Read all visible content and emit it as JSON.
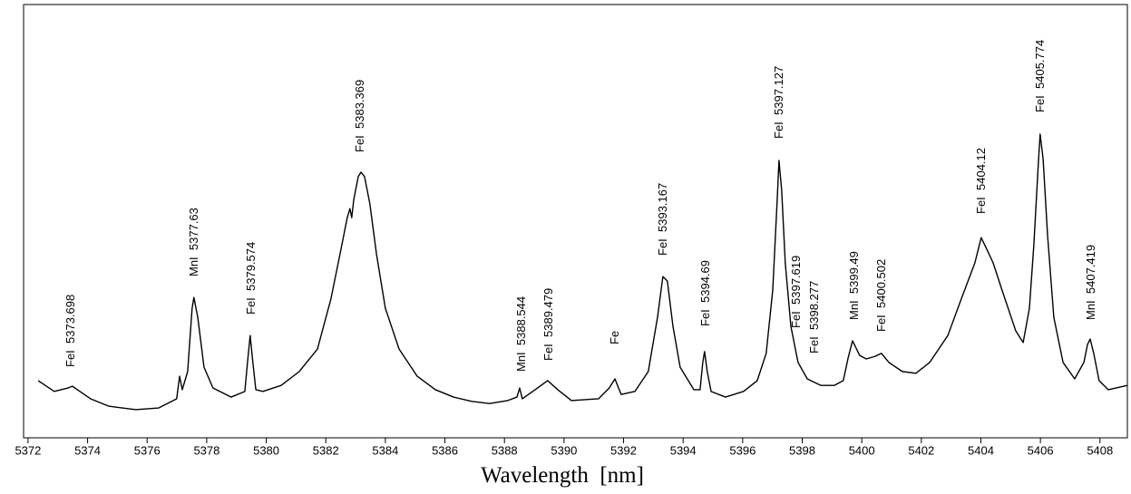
{
  "chart_data": {
    "type": "line",
    "x_label": "Wavelength  [nm]",
    "color": "#000000",
    "xlim": [
      5371.85,
      5408.92
    ],
    "ylim": [
      0,
      100
    ],
    "xticks": [
      5372,
      5374,
      5376,
      5378,
      5380,
      5382,
      5384,
      5386,
      5388,
      5390,
      5392,
      5394,
      5396,
      5398,
      5400,
      5402,
      5404,
      5406,
      5408
    ],
    "x": [
      5372.34,
      5372.88,
      5373.34,
      5373.49,
      5373.74,
      5374.1,
      5374.71,
      5375.62,
      5376.39,
      5376.99,
      5377.09,
      5377.18,
      5377.36,
      5377.51,
      5377.57,
      5377.7,
      5377.91,
      5378.21,
      5378.82,
      5379.28,
      5379.37,
      5379.46,
      5379.55,
      5379.65,
      5379.89,
      5380.5,
      5381.11,
      5381.72,
      5382.17,
      5382.48,
      5382.72,
      5382.81,
      5382.87,
      5382.94,
      5383.09,
      5383.18,
      5383.3,
      5383.48,
      5383.7,
      5384.0,
      5384.46,
      5385.07,
      5385.68,
      5386.29,
      5386.9,
      5387.5,
      5388.11,
      5388.42,
      5388.51,
      5388.6,
      5389.03,
      5389.45,
      5389.79,
      5390.25,
      5391.16,
      5391.52,
      5391.71,
      5391.92,
      5392.38,
      5392.83,
      5393.14,
      5393.32,
      5393.47,
      5393.66,
      5393.9,
      5394.36,
      5394.57,
      5394.66,
      5394.72,
      5394.81,
      5394.94,
      5395.42,
      5396.03,
      5396.49,
      5396.79,
      5397.01,
      5397.16,
      5397.22,
      5397.31,
      5397.43,
      5397.62,
      5397.86,
      5398.17,
      5398.62,
      5399.08,
      5399.38,
      5399.54,
      5399.69,
      5399.93,
      5400.15,
      5400.45,
      5400.66,
      5400.91,
      5401.36,
      5401.82,
      5402.28,
      5402.89,
      5403.34,
      5403.8,
      5404.01,
      5404.2,
      5404.41,
      5404.71,
      5405.17,
      5405.42,
      5405.63,
      5405.78,
      5405.93,
      5405.99,
      5406.09,
      5406.24,
      5406.45,
      5406.76,
      5407.15,
      5407.46,
      5407.58,
      5407.67,
      5407.79,
      5407.97,
      5408.28,
      5408.92
    ],
    "values": [
      13.2,
      10.7,
      11.5,
      11.9,
      10.7,
      9.0,
      7.3,
      6.5,
      6.9,
      9.0,
      14.2,
      11.1,
      15.3,
      29.9,
      32.4,
      27.8,
      16.3,
      11.5,
      9.4,
      10.7,
      17.4,
      23.6,
      17.4,
      11.1,
      10.7,
      12.1,
      15.3,
      20.5,
      32.0,
      42.5,
      50.8,
      52.9,
      50.8,
      55.0,
      60.3,
      61.3,
      60.3,
      54.0,
      42.5,
      29.9,
      20.5,
      14.2,
      11.1,
      9.4,
      8.4,
      7.9,
      8.6,
      9.4,
      11.5,
      9.0,
      11.1,
      13.2,
      11.1,
      8.6,
      9.0,
      11.5,
      13.6,
      10.0,
      10.7,
      15.3,
      27.8,
      37.2,
      36.2,
      25.7,
      16.3,
      11.1,
      11.1,
      17.4,
      19.9,
      15.3,
      10.7,
      9.4,
      10.7,
      13.2,
      19.5,
      34.1,
      55.0,
      64.0,
      57.1,
      40.4,
      25.7,
      17.4,
      13.6,
      12.1,
      12.1,
      13.2,
      18.4,
      22.4,
      19.0,
      18.2,
      18.8,
      19.5,
      17.4,
      15.3,
      14.9,
      17.4,
      23.6,
      32.0,
      40.4,
      46.2,
      43.5,
      40.4,
      34.1,
      24.7,
      22.0,
      29.9,
      44.6,
      63.4,
      70.1,
      64.4,
      46.7,
      27.8,
      17.4,
      13.6,
      17.4,
      21.5,
      22.8,
      19.5,
      13.2,
      11.1,
      12.1
    ],
    "annotations": [
      "FeI  5373.698",
      "MnI  5377.63",
      "FeI  5379.574",
      "FeI  5383.369",
      "MnI  5388.544",
      "FeI  5389.479",
      "Fe",
      "FeI  5393.167",
      "FeI  5394.69",
      "FeI  5397.127",
      "FeI  5397.619",
      "FeI  5398.277",
      "MnI  5399.49",
      "FeI  5400.502",
      "FeI  5404.12",
      "FeI  5405.774",
      "MnI  5407.419"
    ]
  }
}
